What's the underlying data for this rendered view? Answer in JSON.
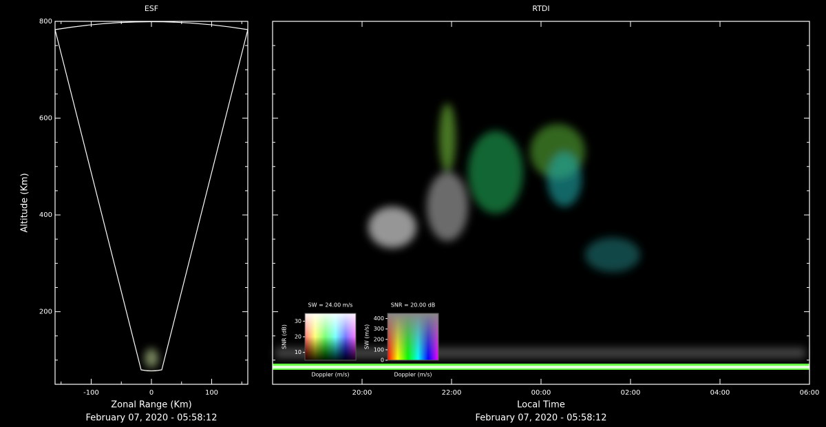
{
  "chart_data": [
    {
      "type": "esf",
      "title": "ESF",
      "xlabel": "Zonal Range (Km)",
      "ylabel": "Altitude (Km)",
      "footer": "February 07, 2020 - 05:58:12",
      "xlim": [
        -160,
        160
      ],
      "xticks": [
        -100,
        0,
        100
      ],
      "xminorticks": [
        -150,
        -50,
        50,
        150
      ],
      "ylim": [
        50,
        800
      ],
      "yticks": [
        200,
        400,
        600,
        800
      ],
      "yminorticks": [
        100,
        150,
        250,
        300,
        350,
        450,
        500,
        550,
        650,
        700,
        750
      ]
    },
    {
      "type": "rtdi",
      "title": "RTDI",
      "xlabel": "Local Time",
      "footer": "February 07, 2020 - 05:58:12",
      "xlim": [
        18,
        30
      ],
      "xticks": [
        {
          "value": 20,
          "label": "20:00"
        },
        {
          "value": 22,
          "label": "22:00"
        },
        {
          "value": 24,
          "label": "00:00"
        },
        {
          "value": 26,
          "label": "02:00"
        },
        {
          "value": 28,
          "label": "04:00"
        },
        {
          "value": 30,
          "label": "06:00"
        }
      ],
      "ylim": [
        50,
        800
      ],
      "yticks": [
        200,
        400,
        600,
        800
      ],
      "yminorticks": [
        100,
        150,
        250,
        300,
        350,
        450,
        500,
        550,
        650,
        700,
        750
      ],
      "legends": [
        {
          "title": "SW = 24.00 m/s",
          "xlabel": "Doppler (m/s)",
          "ylabel": "SNR (dB)",
          "yticks": [
            10,
            20,
            30
          ]
        },
        {
          "title": "SNR = 20.00 dB",
          "xlabel": "Doppler (m/s)",
          "ylabel": "SW (m/s)",
          "yticks": [
            0,
            100,
            200,
            300,
            400
          ]
        }
      ]
    }
  ]
}
